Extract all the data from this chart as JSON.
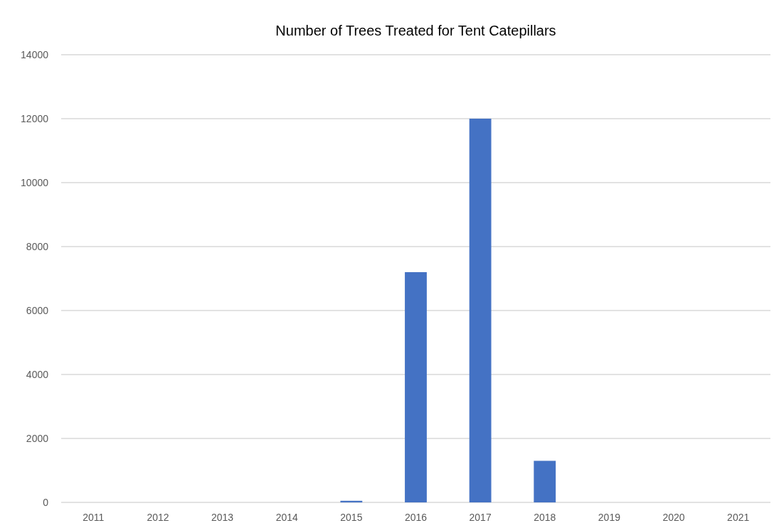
{
  "chart_data": {
    "type": "bar",
    "title": "Number of Trees Treated for Tent Catepillars",
    "categories": [
      "2011",
      "2012",
      "2013",
      "2014",
      "2015",
      "2016",
      "2017",
      "2018",
      "2019",
      "2020",
      "2021"
    ],
    "values": [
      0,
      0,
      0,
      0,
      50,
      7200,
      12000,
      1300,
      0,
      0,
      0
    ],
    "color": "#4472c4",
    "ylim": [
      0,
      14000
    ],
    "yticks": [
      0,
      2000,
      4000,
      6000,
      8000,
      10000,
      12000,
      14000
    ],
    "grid": "y"
  }
}
